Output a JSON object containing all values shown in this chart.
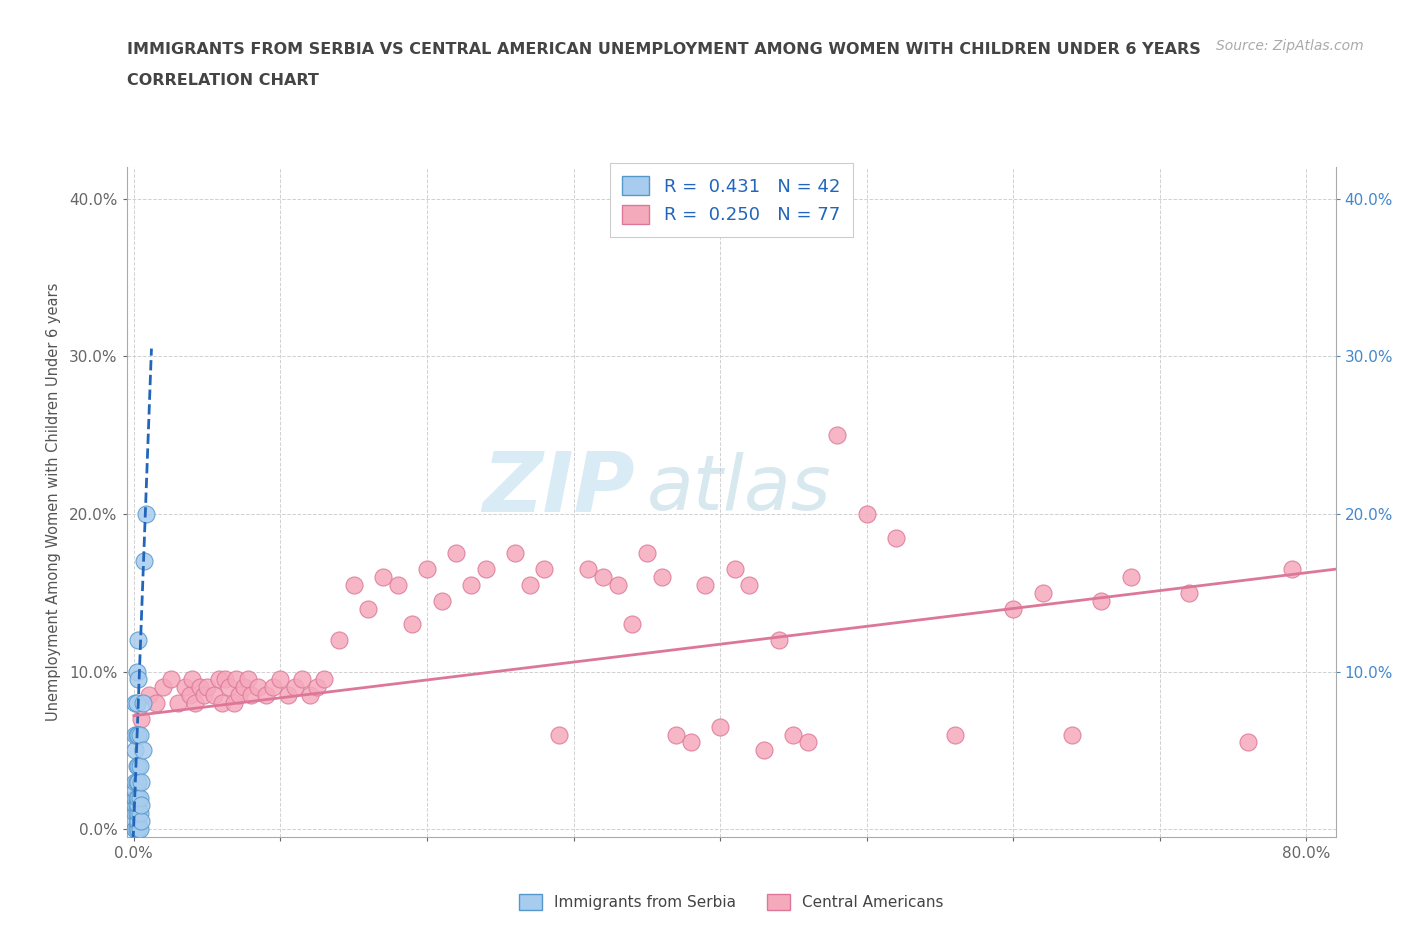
{
  "title_line1": "IMMIGRANTS FROM SERBIA VS CENTRAL AMERICAN UNEMPLOYMENT AMONG WOMEN WITH CHILDREN UNDER 6 YEARS",
  "title_line2": "CORRELATION CHART",
  "source_text": "Source: ZipAtlas.com",
  "ylabel": "Unemployment Among Women with Children Under 6 years",
  "xlim": [
    -0.005,
    0.82
  ],
  "ylim": [
    -0.005,
    0.42
  ],
  "xtick_positions": [
    0.0,
    0.1,
    0.2,
    0.3,
    0.4,
    0.5,
    0.6,
    0.7,
    0.8
  ],
  "xticklabels_show": [
    "0.0%",
    "",
    "",
    "",
    "",
    "",
    "",
    "",
    "80.0%"
  ],
  "ytick_positions": [
    0.0,
    0.1,
    0.2,
    0.3,
    0.4
  ],
  "yticklabels_show": [
    "0.0%",
    "10.0%",
    "20.0%",
    "30.0%",
    "40.0%"
  ],
  "right_ytick_positions": [
    0.1,
    0.2,
    0.3,
    0.4
  ],
  "right_yticklabels": [
    "10.0%",
    "20.0%",
    "30.0%",
    "40.0%"
  ],
  "serbia_color": "#a8ccee",
  "serbia_edge_color": "#5599cc",
  "central_color": "#f5aabc",
  "central_edge_color": "#dd7799",
  "serbia_trend_color": "#2266bb",
  "central_trend_color": "#dd7799",
  "R_serbia": 0.431,
  "N_serbia": 42,
  "R_central": 0.25,
  "N_central": 77,
  "watermark_zip": "ZIP",
  "watermark_atlas": "atlas",
  "serbia_x": [
    0.001,
    0.001,
    0.001,
    0.001,
    0.001,
    0.001,
    0.001,
    0.001,
    0.001,
    0.001,
    0.002,
    0.002,
    0.002,
    0.002,
    0.002,
    0.002,
    0.002,
    0.002,
    0.002,
    0.002,
    0.003,
    0.003,
    0.003,
    0.003,
    0.003,
    0.003,
    0.003,
    0.003,
    0.003,
    0.003,
    0.004,
    0.004,
    0.004,
    0.004,
    0.004,
    0.005,
    0.005,
    0.005,
    0.006,
    0.006,
    0.007,
    0.008
  ],
  "serbia_y": [
    0.0,
    0.0,
    0.01,
    0.015,
    0.02,
    0.025,
    0.03,
    0.05,
    0.06,
    0.08,
    0.0,
    0.005,
    0.01,
    0.015,
    0.02,
    0.03,
    0.04,
    0.06,
    0.08,
    0.1,
    0.0,
    0.005,
    0.01,
    0.015,
    0.02,
    0.03,
    0.04,
    0.06,
    0.095,
    0.12,
    0.0,
    0.01,
    0.02,
    0.04,
    0.06,
    0.005,
    0.015,
    0.03,
    0.05,
    0.08,
    0.17,
    0.2
  ],
  "central_x": [
    0.005,
    0.01,
    0.015,
    0.02,
    0.025,
    0.03,
    0.035,
    0.038,
    0.04,
    0.042,
    0.045,
    0.048,
    0.05,
    0.055,
    0.058,
    0.06,
    0.062,
    0.065,
    0.068,
    0.07,
    0.072,
    0.075,
    0.078,
    0.08,
    0.085,
    0.09,
    0.095,
    0.1,
    0.105,
    0.11,
    0.115,
    0.12,
    0.125,
    0.13,
    0.14,
    0.15,
    0.16,
    0.17,
    0.18,
    0.19,
    0.2,
    0.21,
    0.22,
    0.23,
    0.24,
    0.26,
    0.27,
    0.28,
    0.29,
    0.31,
    0.32,
    0.33,
    0.34,
    0.35,
    0.36,
    0.37,
    0.38,
    0.39,
    0.4,
    0.41,
    0.42,
    0.43,
    0.44,
    0.45,
    0.46,
    0.48,
    0.5,
    0.52,
    0.56,
    0.6,
    0.62,
    0.64,
    0.66,
    0.68,
    0.72,
    0.76,
    0.79
  ],
  "central_y": [
    0.07,
    0.085,
    0.08,
    0.09,
    0.095,
    0.08,
    0.09,
    0.085,
    0.095,
    0.08,
    0.09,
    0.085,
    0.09,
    0.085,
    0.095,
    0.08,
    0.095,
    0.09,
    0.08,
    0.095,
    0.085,
    0.09,
    0.095,
    0.085,
    0.09,
    0.085,
    0.09,
    0.095,
    0.085,
    0.09,
    0.095,
    0.085,
    0.09,
    0.095,
    0.12,
    0.155,
    0.14,
    0.16,
    0.155,
    0.13,
    0.165,
    0.145,
    0.175,
    0.155,
    0.165,
    0.175,
    0.155,
    0.165,
    0.06,
    0.165,
    0.16,
    0.155,
    0.13,
    0.175,
    0.16,
    0.06,
    0.055,
    0.155,
    0.065,
    0.165,
    0.155,
    0.05,
    0.12,
    0.06,
    0.055,
    0.25,
    0.2,
    0.185,
    0.06,
    0.14,
    0.15,
    0.06,
    0.145,
    0.16,
    0.15,
    0.055,
    0.165
  ],
  "serbia_trend_x": [
    -0.002,
    0.012
  ],
  "serbia_trend_y_intercept": 0.005,
  "serbia_trend_slope": 25.0,
  "central_trend_x_start": 0.0,
  "central_trend_x_end": 0.82,
  "central_trend_y_start": 0.072,
  "central_trend_y_end": 0.165
}
